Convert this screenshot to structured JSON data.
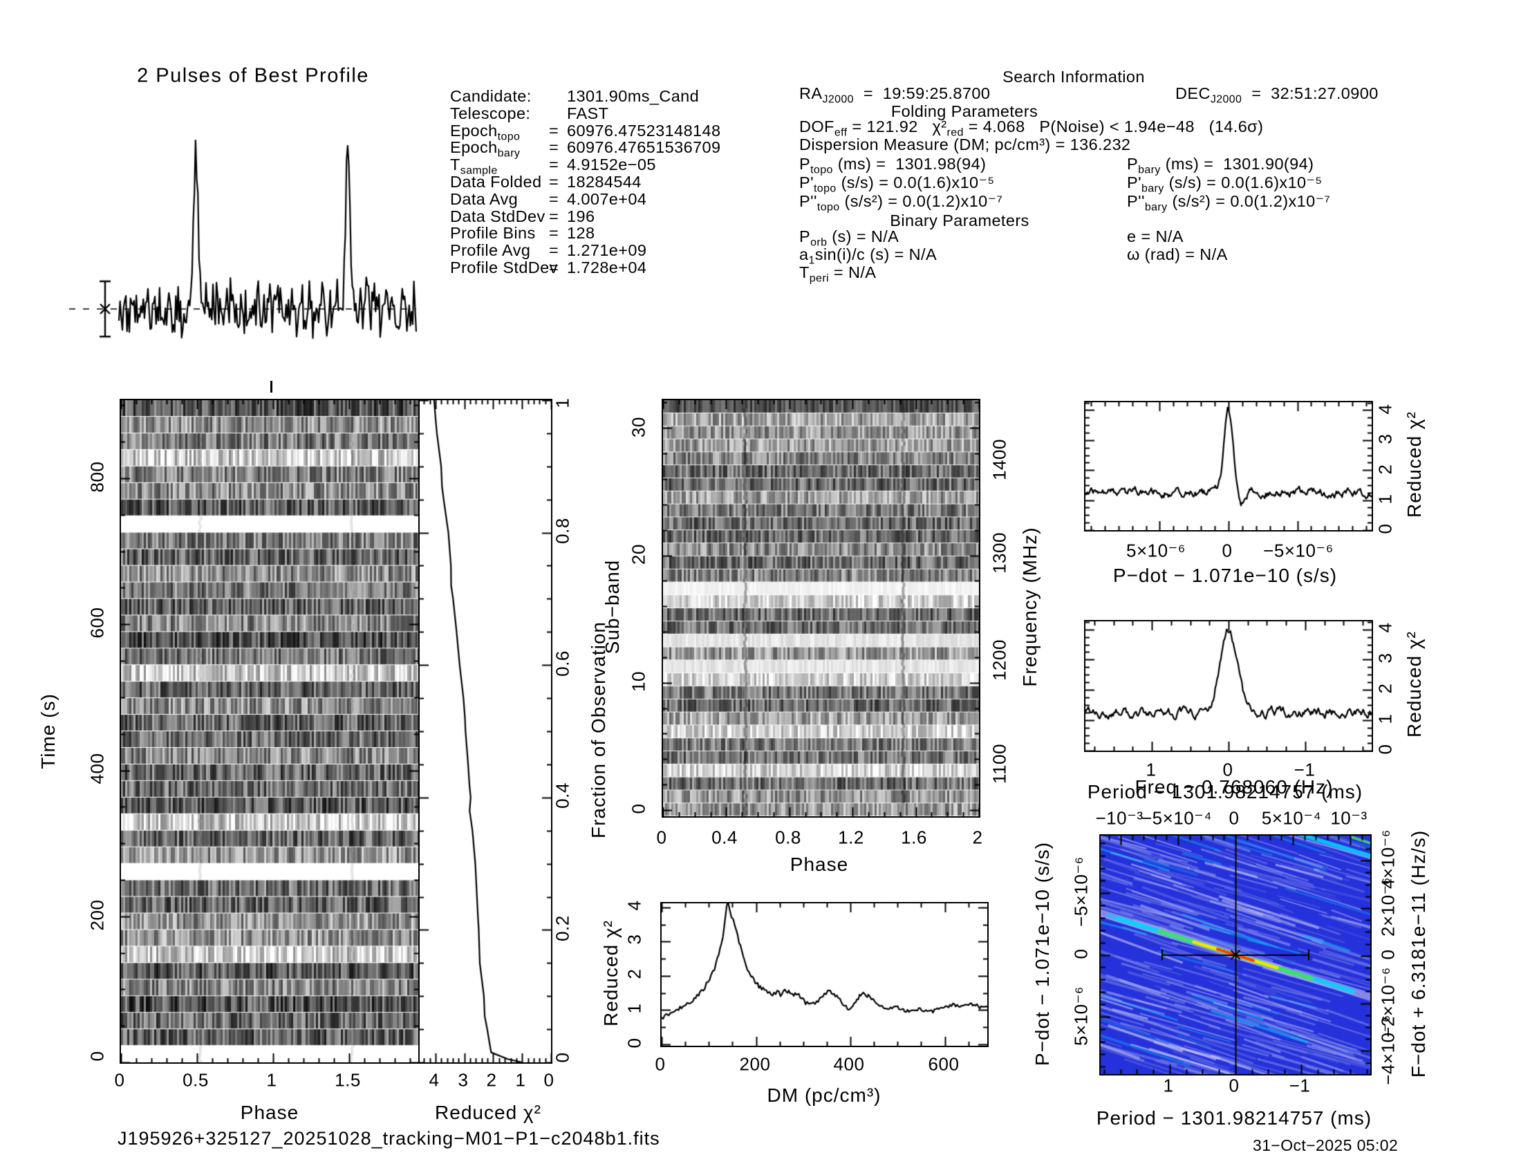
{
  "titles": {
    "profile_panel": "2 Pulses of Best Profile",
    "search_info": "Search Information",
    "folding": "Folding Parameters",
    "binary": "Binary Parameters"
  },
  "info_left": {
    "rows": [
      {
        "label": "Candidate:",
        "eq": "",
        "value": "1301.90ms_Cand"
      },
      {
        "label": "Telescope:",
        "eq": "",
        "value": "FAST"
      },
      {
        "label": "Epoch[topo]",
        "eq": "=",
        "value": "60976.47523148148"
      },
      {
        "label": "Epoch[bary]",
        "eq": "=",
        "value": "60976.47651536709"
      },
      {
        "label": "T[sample]",
        "eq": "=",
        "value": "4.9152e−05"
      },
      {
        "label": "Data Folded",
        "eq": "=",
        "value": "18284544"
      },
      {
        "label": "Data Avg",
        "eq": "=",
        "value": "4.007e+04"
      },
      {
        "label": "Data StdDev",
        "eq": "=",
        "value": "196"
      },
      {
        "label": "Profile Bins",
        "eq": "=",
        "value": "128"
      },
      {
        "label": "Profile Avg",
        "eq": "=",
        "value": "1.271e+09"
      },
      {
        "label": "Profile StdDev",
        "eq": "=",
        "value": "1.728e+04"
      }
    ]
  },
  "search_info": {
    "ra": "RA[J2000]  =  19:59:25.8700",
    "dec": "DEC[J2000]  =  32:51:27.0900",
    "dof": "DOF[eff] = 121.92   χ²[red] = 4.068   P(Noise) < 1.94e−48   (14.6σ)",
    "dm": "Dispersion Measure (DM; pc/cm³) = 136.232",
    "ptopo": "P[topo] (ms) =  1301.98(94)",
    "pbary": "P[bary] (ms) =  1301.90(94)",
    "pdtopo": "P'[topo] (s/s) = 0.0(1.6)x10⁻⁵",
    "pdbary": "P'[bary] (s/s) = 0.0(1.6)x10⁻⁵",
    "pddtopo": "P''[topo] (s/s²) = 0.0(1.2)x10⁻⁷",
    "pddbary": "P''[bary] (s/s²) = 0.0(1.2)x10⁻⁷",
    "porb": "P[orb] (s) = N/A",
    "ecc": "e = N/A",
    "asini": "a[1]sin(i)/c (s) = N/A",
    "omega": "ω (rad) = N/A",
    "tperi": "T[peri] = N/A"
  },
  "axis_labels": {
    "time": "Time (s)",
    "phase_tp": "Phase",
    "redchi_tp": "Reduced χ²",
    "fraction": "Fraction of Observation",
    "subband": "Sub−band",
    "phase_sb": "Phase",
    "frequency": "Frequency (MHz)",
    "redchi_dm": "Reduced χ²",
    "dm": "DM (pc/cm³)",
    "redchi_pd": "Reduced χ²",
    "pdot": "P−dot − 1.071e−10 (s/s)",
    "redchi_p": "Reduced χ²",
    "period": "Period − 1301.98214757 (ms)",
    "map_freq": "Freq − 0.768060 (Hz)",
    "map_pdot": "P−dot − 1.071e−10 (s/s)",
    "map_fdot": "F−dot + 6.3181e−11 (Hz/s)",
    "map_period": "Period − 1301.98214757 (ms)"
  },
  "footer": {
    "filename": "J195926+325127_20251028_tracking−M01−P1−c2048b1.fits",
    "datetime": "31−Oct−2025 05:02"
  },
  "chart_data": {
    "best_profile": {
      "type": "line",
      "title": "2 Pulses of Best Profile",
      "x_range_phase": [
        0,
        2
      ],
      "n_bins": 128,
      "peak_phases": [
        0.5,
        1.5
      ],
      "peak_fwhm_phase": 0.02,
      "baseline_rel": 0.25,
      "peak_rel": 1.0,
      "noise_rel_sigma": 0.055,
      "error_bar": {
        "shown": true,
        "marker": "asterisk"
      }
    },
    "time_vs_phase": {
      "type": "heatmap",
      "xlabel": "Phase",
      "ylabel": "Time (s)",
      "x_range": [
        0,
        1.955
      ],
      "y_range": [
        0,
        907
      ],
      "xtick_labels": [
        "0",
        "0.5",
        "1",
        "1.5"
      ],
      "ytick_labels": [
        "0",
        "200",
        "400",
        "600",
        "800"
      ],
      "n_subints": 40,
      "blank_time_ranges_s": [
        [
          720,
          757
        ],
        [
          243,
          272
        ],
        [
          0,
          18
        ]
      ],
      "pulse_phases": [
        0.52,
        1.52
      ]
    },
    "chi2_vs_fraction": {
      "type": "line",
      "xlabel": "Reduced χ²",
      "ylabel": "Fraction of Observation",
      "x_range": [
        4.55,
        0
      ],
      "y_range": [
        0,
        1
      ],
      "xtick_labels": [
        "4",
        "3",
        "2",
        "1",
        "0"
      ],
      "ytick_labels": [
        "0",
        "0.2",
        "0.4",
        "0.6",
        "0.8",
        "1"
      ],
      "points_chi2_fraction": [
        [
          1.0,
          0
        ],
        [
          1.5,
          0.005
        ],
        [
          2.05,
          0.015
        ],
        [
          2.15,
          0.03
        ],
        [
          2.22,
          0.05
        ],
        [
          2.28,
          0.07
        ],
        [
          2.32,
          0.1
        ],
        [
          2.45,
          0.15
        ],
        [
          2.5,
          0.2
        ],
        [
          2.52,
          0.22
        ],
        [
          2.56,
          0.25
        ],
        [
          2.63,
          0.3
        ],
        [
          2.72,
          0.35
        ],
        [
          2.82,
          0.38
        ],
        [
          2.78,
          0.4
        ],
        [
          2.84,
          0.42
        ],
        [
          2.87,
          0.45
        ],
        [
          2.95,
          0.5
        ],
        [
          3.0,
          0.52
        ],
        [
          3.05,
          0.55
        ],
        [
          3.16,
          0.6
        ],
        [
          3.27,
          0.65
        ],
        [
          3.38,
          0.7
        ],
        [
          3.44,
          0.72
        ],
        [
          3.48,
          0.75
        ],
        [
          3.55,
          0.8
        ],
        [
          3.72,
          0.85
        ],
        [
          3.78,
          0.87
        ],
        [
          3.8,
          0.9
        ],
        [
          3.93,
          0.95
        ],
        [
          3.98,
          0.97
        ],
        [
          4.07,
          1.0
        ]
      ]
    },
    "subband_vs_phase": {
      "type": "heatmap",
      "xlabel": "Phase",
      "ylabel": "Sub−band",
      "ylabel_right": "Frequency (MHz)",
      "x_range": [
        0,
        2
      ],
      "y_range": [
        0,
        32
      ],
      "freq_range_mhz": [
        1000,
        1465
      ],
      "xtick_labels": [
        "0",
        "0.4",
        "0.8",
        "1.2",
        "1.6",
        "2"
      ],
      "ytick_labels": [
        "0",
        "10",
        "20",
        "30"
      ],
      "freq_tick_labels": [
        "1100",
        "1200",
        "1300",
        "1400"
      ],
      "bright_rfi_subbands": [
        17,
        13,
        11
      ],
      "pulse_phases": [
        0.52,
        1.52
      ]
    },
    "chi2_vs_dm": {
      "type": "line",
      "xlabel": "DM (pc/cm³)",
      "ylabel": "Reduced χ²",
      "x_range": [
        0,
        690
      ],
      "y_range": [
        0,
        4.3
      ],
      "xtick_labels": [
        "0",
        "200",
        "400",
        "600"
      ],
      "ytick_labels": [
        "0",
        "1",
        "2",
        "3",
        "4"
      ],
      "best_dm": 136.232,
      "points_dm_chi2": [
        [
          0,
          0.78
        ],
        [
          15,
          0.9
        ],
        [
          30,
          1.0
        ],
        [
          45,
          1.1
        ],
        [
          60,
          1.22
        ],
        [
          75,
          1.4
        ],
        [
          85,
          1.55
        ],
        [
          95,
          1.75
        ],
        [
          105,
          2.0
        ],
        [
          112,
          2.2
        ],
        [
          118,
          2.5
        ],
        [
          124,
          2.8
        ],
        [
          130,
          3.2
        ],
        [
          134,
          3.6
        ],
        [
          138,
          4.05
        ],
        [
          141,
          4.1
        ],
        [
          144,
          3.9
        ],
        [
          148,
          3.75
        ],
        [
          152,
          3.6
        ],
        [
          158,
          3.3
        ],
        [
          164,
          3.0
        ],
        [
          170,
          2.7
        ],
        [
          176,
          2.45
        ],
        [
          182,
          2.2
        ],
        [
          190,
          2.0
        ],
        [
          198,
          1.85
        ],
        [
          206,
          1.7
        ],
        [
          215,
          1.6
        ],
        [
          225,
          1.5
        ],
        [
          235,
          1.45
        ],
        [
          245,
          1.55
        ],
        [
          252,
          1.45
        ],
        [
          258,
          1.6
        ],
        [
          264,
          1.5
        ],
        [
          272,
          1.55
        ],
        [
          280,
          1.45
        ],
        [
          288,
          1.5
        ],
        [
          296,
          1.35
        ],
        [
          305,
          1.2
        ],
        [
          315,
          1.25
        ],
        [
          325,
          1.2
        ],
        [
          335,
          1.3
        ],
        [
          345,
          1.45
        ],
        [
          352,
          1.55
        ],
        [
          360,
          1.5
        ],
        [
          368,
          1.45
        ],
        [
          378,
          1.3
        ],
        [
          388,
          1.1
        ],
        [
          396,
          1.05
        ],
        [
          405,
          1.15
        ],
        [
          414,
          1.3
        ],
        [
          422,
          1.45
        ],
        [
          430,
          1.5
        ],
        [
          438,
          1.4
        ],
        [
          448,
          1.3
        ],
        [
          458,
          1.2
        ],
        [
          470,
          1.1
        ],
        [
          485,
          1.05
        ],
        [
          500,
          1.1
        ],
        [
          515,
          1.0
        ],
        [
          530,
          0.95
        ],
        [
          545,
          1.05
        ],
        [
          560,
          1.0
        ],
        [
          575,
          0.95
        ],
        [
          590,
          1.05
        ],
        [
          605,
          1.1
        ],
        [
          620,
          1.15
        ],
        [
          635,
          1.1
        ],
        [
          650,
          1.2
        ],
        [
          665,
          1.15
        ],
        [
          680,
          1.05
        ],
        [
          690,
          1.1
        ]
      ]
    },
    "chi2_vs_pdot": {
      "type": "line",
      "xlabel": "P−dot − 1.071e−10 (s/s)",
      "ylabel": "Reduced χ²",
      "x_range": [
        1.04e-05,
        -1.04e-05
      ],
      "y_range": [
        0,
        4.4
      ],
      "xtick_labels": [
        "5×10⁻⁶",
        "0",
        "−5×10⁻⁶"
      ],
      "ytick_labels": [
        "0",
        "1",
        "2",
        "3",
        "4"
      ],
      "peak": {
        "x": 0,
        "chi2": 4.1
      },
      "baseline_chi2": 1.3
    },
    "chi2_vs_period": {
      "type": "line",
      "xlabel": "Period − 1301.98214757 (ms)",
      "ylabel": "Reduced χ²",
      "x_range": [
        1.865,
        -1.865
      ],
      "y_range": [
        0,
        4.4
      ],
      "xtick_labels": [
        "1",
        "0",
        "−1"
      ],
      "ytick_labels": [
        "0",
        "1",
        "2",
        "3",
        "4"
      ],
      "peak": {
        "x": 0,
        "chi2": 4.1
      },
      "baseline_chi2": 1.25
    },
    "period_pdot_plane": {
      "type": "heatmap",
      "title": "Freq − 0.768060 (Hz)",
      "xlabel": "Period − 1301.98214757 (ms)",
      "ylabel": "P−dot − 1.071e−10 (s/s)",
      "ylabel_right": "F−dot + 6.3181e−11 (Hz/s)",
      "freq_tick_labels": [
        "−10⁻³",
        "−5×10⁻⁴",
        "0",
        "5×10⁻⁴",
        "10⁻³"
      ],
      "pdot_tick_labels": [
        "−5×10⁻⁶",
        "0",
        "5×10⁻⁶"
      ],
      "fdot_tick_labels": [
        "4×10⁻⁶",
        "2×10⁻⁶",
        "0",
        "−2×10⁻⁶",
        "−4×10⁻⁶"
      ],
      "period_tick_labels": [
        "1",
        "0",
        "−1"
      ],
      "best_point": {
        "period_offset_ms": 0,
        "pdot_offset": 0
      },
      "ridge_slope_dy_dx": 0.31,
      "colormap": "blue-cyan-green-yellow-red"
    }
  }
}
